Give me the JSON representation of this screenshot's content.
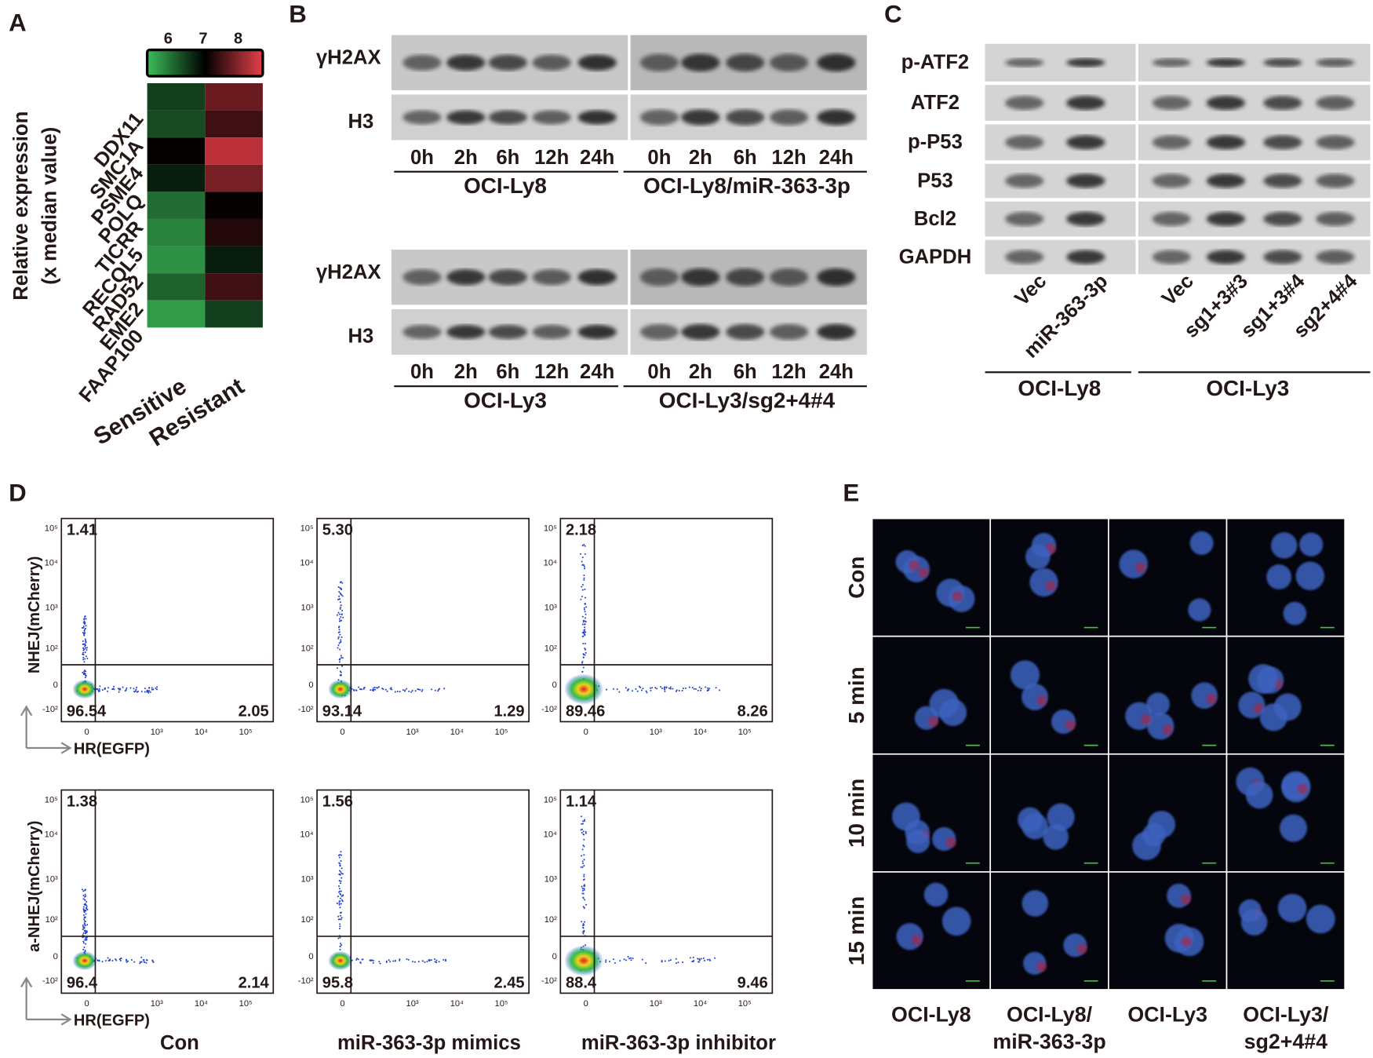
{
  "panel_A": {
    "label": "A",
    "axis_title": [
      "Relative expression",
      "(x median value)"
    ],
    "colorbar": {
      "range": [
        5.4,
        8.7
      ],
      "ticks": [
        6,
        7,
        8
      ]
    },
    "genes": [
      "DDX11",
      "SMC1A",
      "PSME4",
      "POLQ",
      "TICRR",
      "RECQL5",
      "RAD52",
      "EME2",
      "FAAP100"
    ],
    "groups": [
      "Sensitive",
      "Resistant"
    ],
    "values": [
      [
        6.5,
        7.8
      ],
      [
        6.4,
        7.5
      ],
      [
        7.1,
        8.4
      ],
      [
        6.8,
        7.9
      ],
      [
        6.1,
        7.1
      ],
      [
        5.9,
        7.3
      ],
      [
        5.8,
        6.8
      ],
      [
        6.2,
        7.5
      ],
      [
        5.7,
        6.5
      ]
    ]
  },
  "panel_B": {
    "label": "B",
    "blots": [
      {
        "proteins": [
          "γH2AX",
          "H3"
        ],
        "times": [
          [
            "0h",
            "2h",
            "6h",
            "12h",
            "24h"
          ],
          [
            "0h",
            "2h",
            "6h",
            "12h",
            "24h"
          ]
        ],
        "cell_lines": [
          "OCI-Ly8",
          "OCI-Ly8/miR-363-3p"
        ]
      },
      {
        "proteins": [
          "γH2AX",
          "H3"
        ],
        "times": [
          [
            "0h",
            "2h",
            "6h",
            "12h",
            "24h"
          ],
          [
            "0h",
            "2h",
            "6h",
            "12h",
            "24h"
          ]
        ],
        "cell_lines": [
          "OCI-Ly3",
          "OCI-Ly3/sg2+4#4"
        ]
      }
    ]
  },
  "panel_C": {
    "label": "C",
    "proteins": [
      "p-ATF2",
      "ATF2",
      "p-P53",
      "P53",
      "Bcl2",
      "GAPDH"
    ],
    "lanes": [
      "Vec",
      "miR-363-3p",
      "Vec",
      "sg1+3#3",
      "sg1+3#4",
      "sg2+4#4"
    ],
    "cell_lines": [
      "OCI-Ly8",
      "OCI-Ly3"
    ]
  },
  "panel_D": {
    "label": "D",
    "y_titles": [
      "NHEJ(mCherry)",
      "a-NHEJ(mCherry)"
    ],
    "x_title": "HR(EGFP)",
    "y_ticks": [
      "10⁵",
      "10⁴",
      "10³",
      "10²",
      "0",
      "-10²"
    ],
    "x_ticks": [
      "0",
      "10³",
      "10⁴",
      "10⁵"
    ],
    "conditions": [
      "Con",
      "miR-363-3p mimics",
      "miR-363-3p inhibitor"
    ],
    "quadrants": [
      [
        [
          "1.41",
          "96.54",
          "2.05"
        ],
        [
          "5.30",
          "93.14",
          "1.29"
        ],
        [
          "2.18",
          "89.46",
          "8.26"
        ]
      ],
      [
        [
          "1.38",
          "96.4",
          "2.14"
        ],
        [
          "1.56",
          "95.8",
          "2.45"
        ],
        [
          "1.14",
          "88.4",
          "9.46"
        ]
      ]
    ]
  },
  "panel_E": {
    "label": "E",
    "timepoints": [
      "Con",
      "5 min",
      "10 min",
      "15 min"
    ],
    "cell_lines": [
      [
        "OCI-Ly8"
      ],
      [
        "OCI-Ly8/",
        "miR-363-3p"
      ],
      [
        "OCI-Ly3"
      ],
      [
        "OCI-Ly3/",
        "sg2+4#4"
      ]
    ]
  }
}
